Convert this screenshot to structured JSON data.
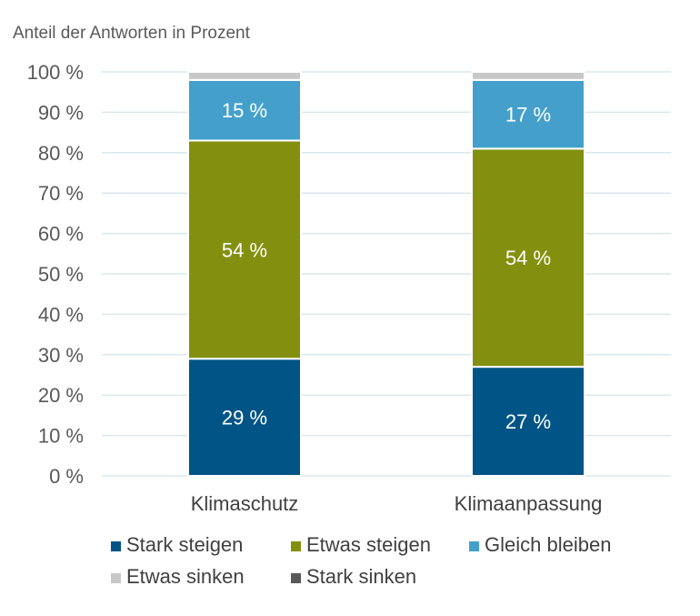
{
  "chart_data": {
    "type": "bar",
    "stacked": true,
    "ylabel": "Anteil der Antworten in Prozent",
    "ylim": [
      0,
      100
    ],
    "yticks": [
      0,
      10,
      20,
      30,
      40,
      50,
      60,
      70,
      80,
      90,
      100
    ],
    "ytick_suffix": " %",
    "grid": true,
    "legend_position": "bottom",
    "categories": [
      "Klimaschutz",
      "Klimaanpassung"
    ],
    "series": [
      {
        "name": "Stark steigen",
        "color": "#005486",
        "values": [
          29,
          27
        ],
        "labels": [
          "29 %",
          "27 %"
        ]
      },
      {
        "name": "Etwas steigen",
        "color": "#83900f",
        "values": [
          54,
          54
        ],
        "labels": [
          "54 %",
          "54 %"
        ]
      },
      {
        "name": "Gleich bleiben",
        "color": "#44a0cb",
        "values": [
          15,
          17
        ],
        "labels": [
          "15 %",
          "17 %"
        ]
      },
      {
        "name": "Etwas sinken",
        "color": "#c8c8c8",
        "values": [
          2,
          2
        ],
        "labels": [
          "",
          ""
        ]
      },
      {
        "name": "Stark sinken",
        "color": "#595959",
        "values": [
          0,
          0
        ],
        "labels": [
          "",
          ""
        ]
      }
    ]
  }
}
